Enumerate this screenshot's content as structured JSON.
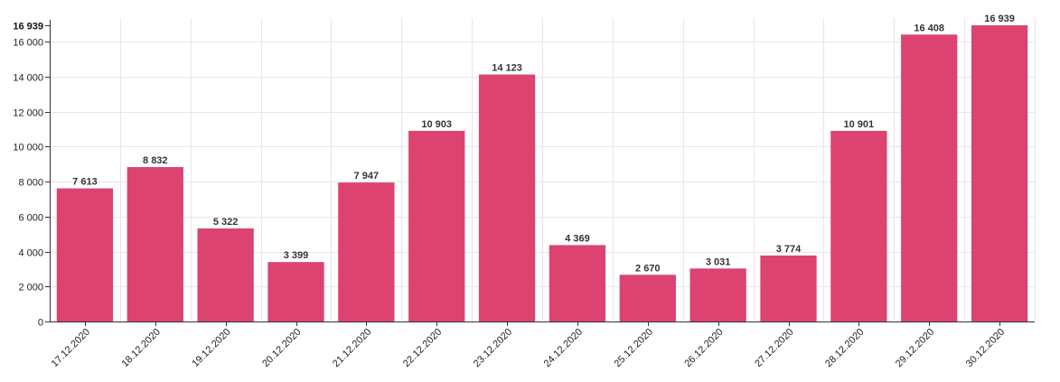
{
  "chart_data": {
    "type": "bar",
    "title": "",
    "xlabel": "",
    "ylabel": "",
    "categories": [
      "17.12.2020",
      "18.12.2020",
      "19.12.2020",
      "20.12.2020",
      "21.12.2020",
      "22.12.2020",
      "23.12.2020",
      "24.12.2020",
      "25.12.2020",
      "26.12.2020",
      "27.12.2020",
      "28.12.2020",
      "29.12.2020",
      "30.12.2020"
    ],
    "values": [
      7613,
      8832,
      5322,
      3399,
      7947,
      10903,
      14123,
      4369,
      2670,
      3031,
      3774,
      10901,
      16408,
      16939
    ],
    "value_labels": [
      "7 613",
      "8 832",
      "5 322",
      "3 399",
      "7 947",
      "10 903",
      "14 123",
      "4 369",
      "2 670",
      "3 031",
      "3 774",
      "10 901",
      "16 408",
      "16 939"
    ],
    "ylim": [
      0,
      16939
    ],
    "y_ticks": [
      0,
      2000,
      4000,
      6000,
      8000,
      10000,
      12000,
      14000,
      16000
    ],
    "y_tick_labels": [
      "0",
      "2 000",
      "4 000",
      "6 000",
      "8 000",
      "10 000",
      "12 000",
      "14 000",
      "16 000"
    ],
    "y_max_label": "16 939",
    "grid": true,
    "legend": "none",
    "bar_color": "#dc4370"
  }
}
